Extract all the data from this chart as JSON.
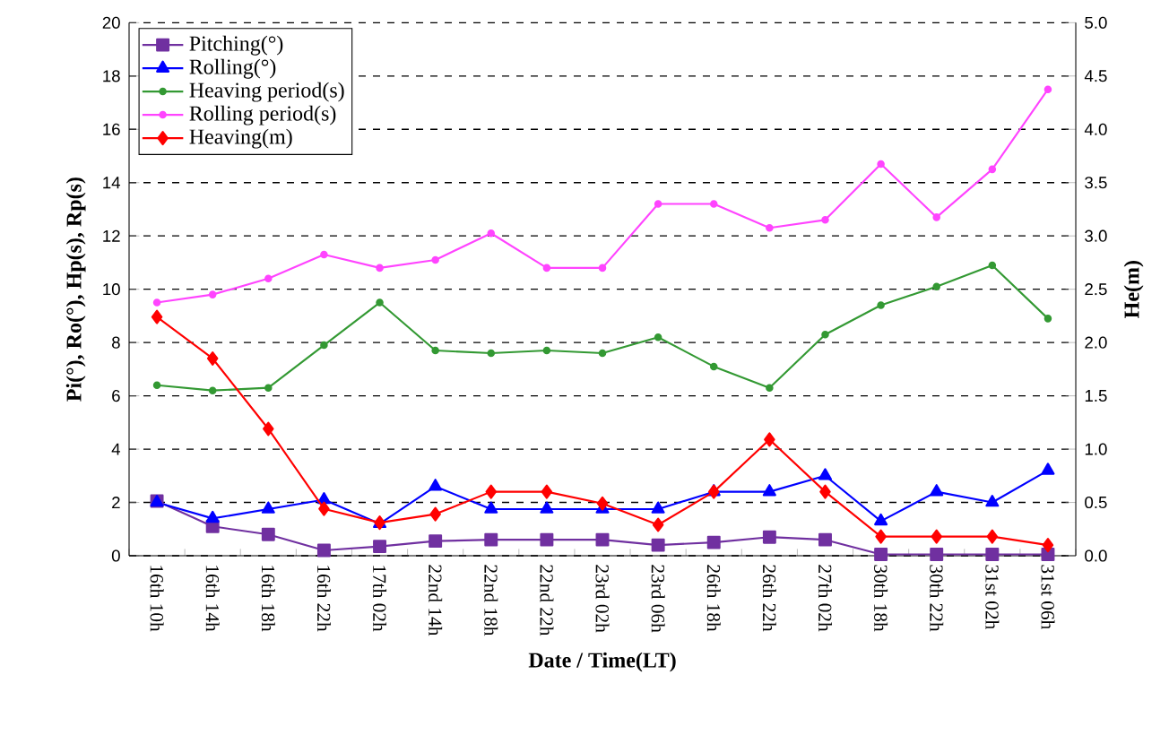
{
  "chart_data": {
    "type": "line",
    "xlabel": "Date / Time(LT)",
    "ylabel": "Pi(°), Ro(°), Hp(s), Rp(s)",
    "y2label": "He(m)",
    "categories": [
      "16th 10h",
      "16th 14h",
      "16th 18h",
      "16th 22h",
      "17th 02h",
      "22nd 14h",
      "22nd 18h",
      "22nd 22h",
      "23rd 02h",
      "23rd 06h",
      "26th 18h",
      "26th 22h",
      "27th 02h",
      "30th 18h",
      "30th 22h",
      "31st 02h",
      "31st 06h"
    ],
    "series": [
      {
        "name": "Pitching(°)",
        "color": "#7030a0",
        "marker": "square",
        "values": [
          2.05,
          1.1,
          0.8,
          0.2,
          0.35,
          0.55,
          0.6,
          0.6,
          0.6,
          0.4,
          0.5,
          0.7,
          0.6,
          0.05,
          0.05,
          0.05,
          0.05
        ]
      },
      {
        "name": "Rolling(°)",
        "color": "#0000ff",
        "marker": "triangle",
        "values": [
          2.0,
          1.4,
          1.75,
          2.1,
          1.2,
          2.6,
          1.75,
          1.75,
          1.75,
          1.75,
          2.4,
          2.4,
          3.0,
          1.3,
          2.4,
          2.0,
          3.2
        ]
      },
      {
        "name": "Heaving period(s)",
        "color": "#339933",
        "marker": "circle",
        "values": [
          6.4,
          6.2,
          6.3,
          7.9,
          9.5,
          7.7,
          7.6,
          7.7,
          7.6,
          8.2,
          7.1,
          6.3,
          8.3,
          9.4,
          10.1,
          10.9,
          8.9
        ]
      },
      {
        "name": "Rolling period(s)",
        "color": "#ff44ff",
        "marker": "circle",
        "values": [
          9.5,
          9.8,
          10.4,
          11.3,
          10.8,
          11.1,
          12.1,
          10.8,
          10.8,
          13.2,
          13.2,
          12.3,
          12.6,
          14.7,
          12.7,
          14.5,
          17.5
        ]
      },
      {
        "name": "Heaving(m)",
        "color": "#ff0000",
        "marker": "diamond",
        "axis": "y2",
        "values": [
          2.24,
          1.85,
          1.19,
          0.44,
          0.31,
          0.39,
          0.6,
          0.6,
          0.49,
          0.29,
          0.6,
          1.09,
          0.6,
          0.18,
          0.18,
          0.18,
          0.1
        ]
      }
    ],
    "ylim": [
      0,
      20
    ],
    "yticks": [
      0,
      2,
      4,
      6,
      8,
      10,
      12,
      14,
      16,
      18,
      20
    ],
    "y2lim": [
      0,
      5
    ],
    "y2ticks": [
      {
        "value": 0,
        "label": "0.0"
      },
      {
        "value": 0.5,
        "label": "0.5"
      },
      {
        "value": 1,
        "label": "1.0"
      },
      {
        "value": 1.5,
        "label": "1.5"
      },
      {
        "value": 2,
        "label": "2.0"
      },
      {
        "value": 2.5,
        "label": "2.5"
      },
      {
        "value": 3,
        "label": "3.0"
      },
      {
        "value": 3.5,
        "label": "3.5"
      },
      {
        "value": 4,
        "label": "4.0"
      },
      {
        "value": 4.5,
        "label": "4.5"
      },
      {
        "value": 5,
        "label": "5.0"
      }
    ],
    "grid": "y",
    "legend": "top left"
  }
}
